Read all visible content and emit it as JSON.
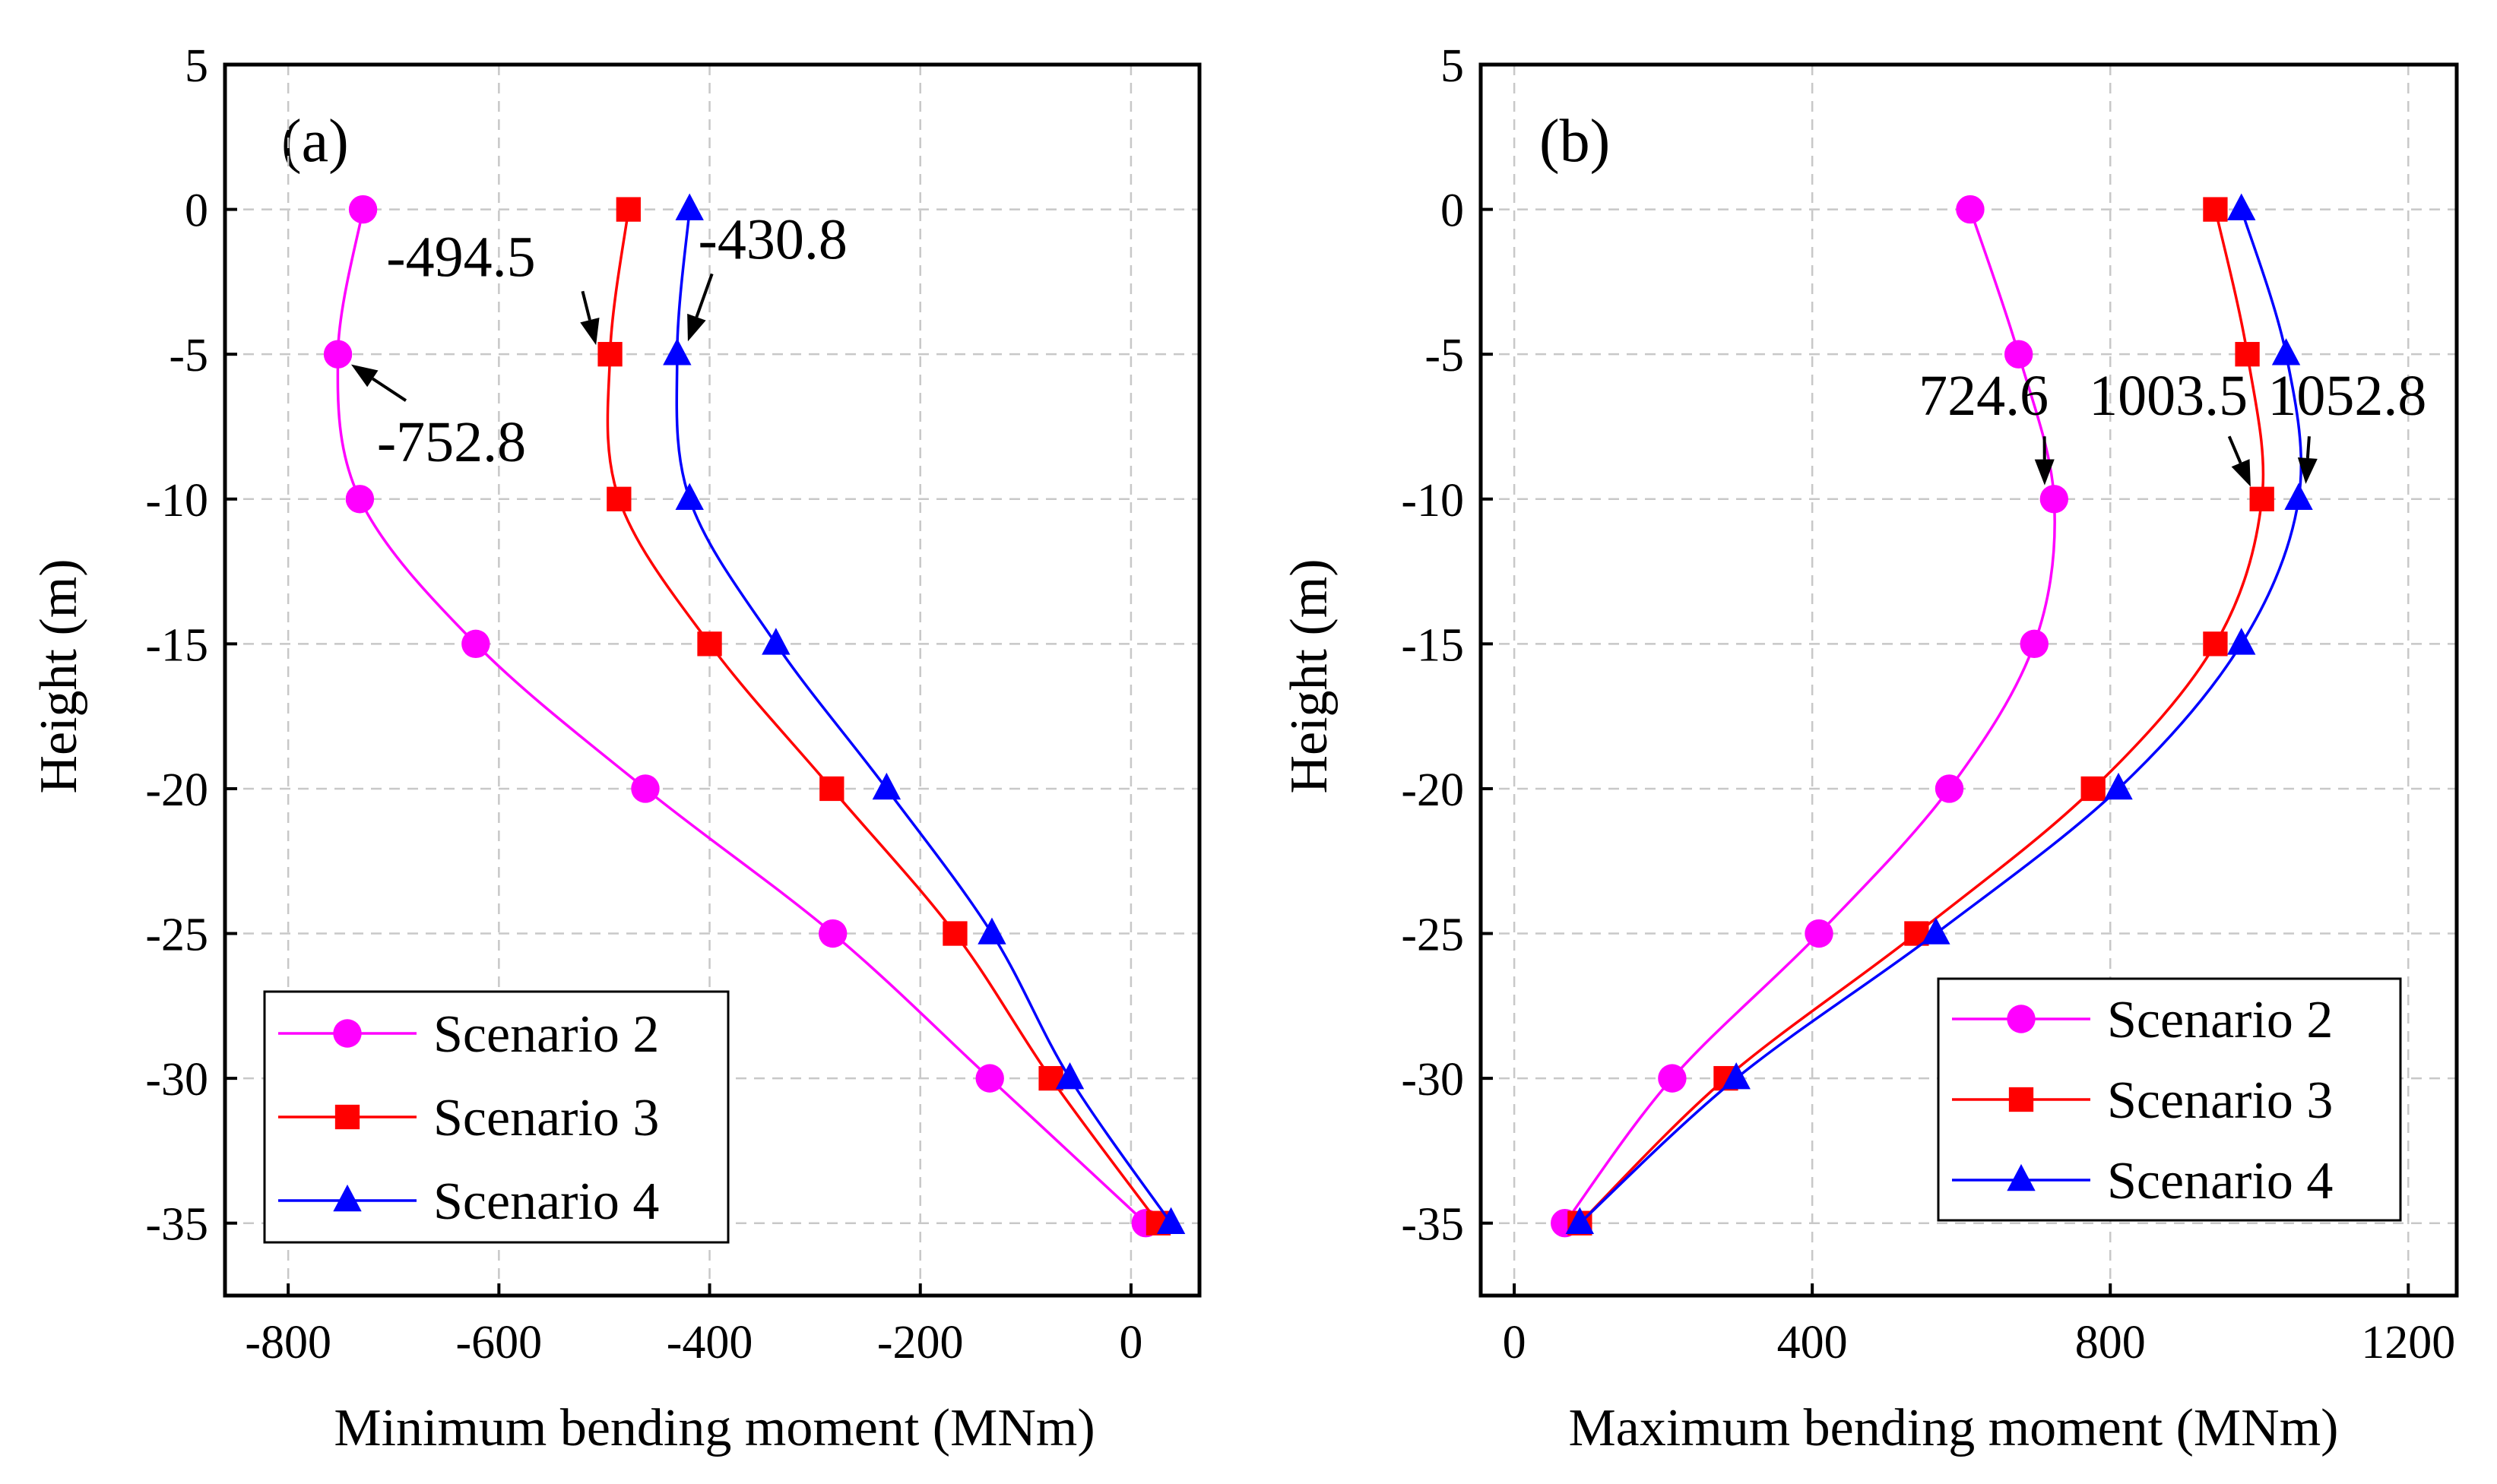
{
  "chart_data": [
    {
      "type": "line",
      "panel_label": "(a)",
      "xlabel": "Minimum bending moment (MNm)",
      "ylabel": "Height (m)",
      "xlim": [
        -860,
        65
      ],
      "ylim": [
        -37.5,
        5
      ],
      "xticks": [
        -800,
        -600,
        -400,
        -200,
        0
      ],
      "yticks": [
        5,
        0,
        -5,
        -10,
        -15,
        -20,
        -25,
        -30,
        -35
      ],
      "grid": true,
      "legend_position": "bottom-left",
      "series": [
        {
          "name": "Scenario 2",
          "color": "#ff00ff",
          "marker": "circle",
          "x": [
            -729,
            -752.8,
            -732,
            -622,
            -461,
            -283,
            -134,
            14
          ],
          "y": [
            0,
            -5,
            -10,
            -15,
            -20,
            -25,
            -30,
            -35
          ]
        },
        {
          "name": "Scenario 3",
          "color": "#ff0000",
          "marker": "square",
          "x": [
            -477,
            -494.5,
            -486,
            -400,
            -284,
            -167,
            -76,
            26
          ],
          "y": [
            0,
            -5,
            -10,
            -15,
            -20,
            -25,
            -30,
            -35
          ]
        },
        {
          "name": "Scenario 4",
          "color": "#0000ff",
          "marker": "triangle",
          "x": [
            -419,
            -430.8,
            -419,
            -337,
            -232,
            -132,
            -58,
            38
          ],
          "y": [
            0,
            -5,
            -10,
            -15,
            -20,
            -25,
            -30,
            -35
          ]
        }
      ],
      "annotations": [
        {
          "text": "-494.5",
          "target": [
            -494.5,
            -5
          ],
          "label_at": [
            -636,
            -2.3
          ]
        },
        {
          "text": "-430.8",
          "target": [
            -430.8,
            -5
          ],
          "label_at": [
            -340,
            -1.7
          ]
        },
        {
          "text": "-752.8",
          "target": [
            -752.8,
            -5
          ],
          "label_at": [
            -645,
            -8.7
          ]
        }
      ]
    },
    {
      "type": "line",
      "panel_label": "(b)",
      "xlabel": "Maximum bending moment (MNm)",
      "ylabel": "Height (m)",
      "xlim": [
        -45,
        1265
      ],
      "ylim": [
        -37.5,
        5
      ],
      "xticks": [
        0,
        400,
        800,
        1200
      ],
      "yticks": [
        5,
        0,
        -5,
        -10,
        -15,
        -20,
        -25,
        -30,
        -35
      ],
      "grid": true,
      "legend_position": "bottom-right",
      "series": [
        {
          "name": "Scenario 2",
          "color": "#ff00ff",
          "marker": "circle",
          "x": [
            612,
            677,
            724.6,
            698,
            584,
            409,
            212,
            68
          ],
          "y": [
            0,
            -5,
            -10,
            -15,
            -20,
            -25,
            -30,
            -35
          ]
        },
        {
          "name": "Scenario 3",
          "color": "#ff0000",
          "marker": "square",
          "x": [
            941,
            984,
            1003.5,
            941,
            777,
            540,
            284,
            88
          ],
          "y": [
            0,
            -5,
            -10,
            -15,
            -20,
            -25,
            -30,
            -35
          ]
        },
        {
          "name": "Scenario 4",
          "color": "#0000ff",
          "marker": "triangle",
          "x": [
            976,
            1036,
            1052.8,
            976,
            811,
            566,
            298,
            88
          ],
          "y": [
            0,
            -5,
            -10,
            -15,
            -20,
            -25,
            -30,
            -35
          ]
        }
      ],
      "annotations": [
        {
          "text": "724.6",
          "target": [
            724.6,
            -10
          ],
          "label_at": [
            630,
            -7.1
          ]
        },
        {
          "text": "1003.5",
          "target": [
            1003.5,
            -10
          ],
          "label_at": [
            878,
            -7.1
          ]
        },
        {
          "text": "1052.8",
          "target": [
            1052.8,
            -10
          ],
          "label_at": [
            1118,
            -7.1
          ]
        }
      ]
    }
  ]
}
